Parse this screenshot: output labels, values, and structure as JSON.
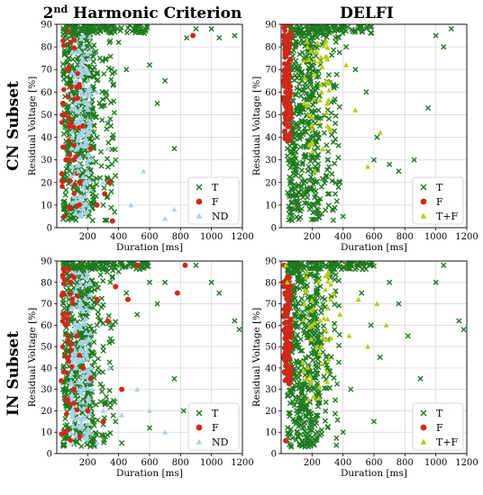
{
  "figure": {
    "col_titles": [
      "2nd Harmonic Criterion",
      "DELFI"
    ],
    "row_titles": [
      "CN Subset",
      "IN Subset"
    ]
  },
  "colors": {
    "T": "#1f7a1f",
    "F": "#cc2a1a",
    "ND": "#a9d2e6",
    "TF": "#b8cc10"
  },
  "chart_data": [
    {
      "type": "scatter",
      "id": "cn-harmonic",
      "panel_title": "2nd Harmonic Criterion",
      "row": "CN Subset",
      "xlabel": "Duration [ms]",
      "ylabel": "Residual Voltage [%]",
      "xlim": [
        0,
        1200
      ],
      "ylim": [
        0,
        90
      ],
      "xticks": [
        200,
        400,
        600,
        800,
        1000,
        1200
      ],
      "yticks": [
        0,
        10,
        20,
        30,
        40,
        50,
        60,
        70,
        80,
        90
      ],
      "grid": true,
      "legend_position": "bottom-right",
      "series": [
        {
          "name": "T",
          "marker": "x",
          "points": [
            [
              60,
              88
            ],
            [
              120,
              85
            ],
            [
              200,
              80
            ],
            [
              280,
              75
            ],
            [
              320,
              60
            ],
            [
              350,
              45
            ],
            [
              380,
              30
            ],
            [
              400,
              82
            ],
            [
              450,
              70
            ],
            [
              520,
              88
            ],
            [
              600,
              72
            ],
            [
              650,
              55
            ],
            [
              700,
              65
            ],
            [
              760,
              35
            ],
            [
              840,
              84
            ],
            [
              900,
              88
            ],
            [
              1000,
              88
            ],
            [
              1050,
              84
            ],
            [
              1150,
              85
            ],
            [
              230,
              15
            ],
            [
              300,
              10
            ],
            [
              260,
              40
            ],
            [
              180,
              65
            ]
          ]
        },
        {
          "name": "F",
          "marker": "o",
          "points": [
            [
              40,
              55
            ],
            [
              55,
              50
            ],
            [
              60,
              30
            ],
            [
              70,
              70
            ],
            [
              80,
              45
            ],
            [
              90,
              82
            ],
            [
              110,
              30
            ],
            [
              130,
              62
            ],
            [
              150,
              20
            ],
            [
              170,
              45
            ],
            [
              220,
              35
            ],
            [
              260,
              10
            ],
            [
              310,
              15
            ],
            [
              340,
              20
            ],
            [
              360,
              3
            ],
            [
              880,
              85
            ]
          ]
        },
        {
          "name": "ND",
          "marker": "^",
          "points": [
            [
              100,
              40
            ],
            [
              120,
              55
            ],
            [
              140,
              25
            ],
            [
              160,
              70
            ],
            [
              180,
              10
            ],
            [
              200,
              48
            ],
            [
              230,
              30
            ],
            [
              260,
              60
            ],
            [
              300,
              20
            ],
            [
              330,
              35
            ],
            [
              480,
              10
            ],
            [
              560,
              25
            ],
            [
              700,
              4
            ],
            [
              760,
              8
            ]
          ]
        }
      ]
    },
    {
      "type": "scatter",
      "id": "cn-delfi",
      "panel_title": "DELFI",
      "row": "CN Subset",
      "xlabel": "Duration [ms]",
      "ylabel": "Residual Voltage [%]",
      "xlim": [
        0,
        1200
      ],
      "ylim": [
        0,
        90
      ],
      "xticks": [
        200,
        400,
        600,
        800,
        1000,
        1200
      ],
      "yticks": [
        0,
        10,
        20,
        30,
        40,
        50,
        60,
        70,
        80,
        90
      ],
      "grid": true,
      "legend_position": "bottom-right",
      "series": [
        {
          "name": "T",
          "marker": "x",
          "points": [
            [
              60,
              88
            ],
            [
              150,
              75
            ],
            [
              200,
              60
            ],
            [
              250,
              45
            ],
            [
              300,
              30
            ],
            [
              350,
              15
            ],
            [
              420,
              80
            ],
            [
              480,
              70
            ],
            [
              550,
              60
            ],
            [
              600,
              30
            ],
            [
              620,
              40
            ],
            [
              700,
              28
            ],
            [
              760,
              25
            ],
            [
              860,
              30
            ],
            [
              950,
              53
            ],
            [
              1000,
              85
            ],
            [
              1050,
              80
            ],
            [
              1100,
              88
            ],
            [
              400,
              5
            ],
            [
              380,
              20
            ]
          ]
        },
        {
          "name": "F",
          "marker": "o",
          "points": [
            [
              20,
              85
            ],
            [
              25,
              70
            ],
            [
              30,
              60
            ],
            [
              35,
              50
            ],
            [
              40,
              40
            ],
            [
              45,
              78
            ],
            [
              50,
              66
            ],
            [
              55,
              55
            ],
            [
              60,
              45
            ]
          ]
        },
        {
          "name": "T+F",
          "marker": "^",
          "points": [
            [
              150,
              55
            ],
            [
              180,
              50
            ],
            [
              200,
              38
            ],
            [
              220,
              25
            ],
            [
              260,
              60
            ],
            [
              300,
              45
            ],
            [
              420,
              72
            ],
            [
              480,
              52
            ],
            [
              560,
              27
            ],
            [
              640,
              42
            ]
          ]
        }
      ]
    },
    {
      "type": "scatter",
      "id": "in-harmonic",
      "panel_title": "",
      "row": "IN Subset",
      "xlabel": "Duration [ms]",
      "ylabel": "Residual Voltage [%]",
      "xlim": [
        0,
        1200
      ],
      "ylim": [
        0,
        90
      ],
      "xticks": [
        200,
        400,
        600,
        800,
        1000,
        1200
      ],
      "yticks": [
        0,
        10,
        20,
        30,
        40,
        50,
        60,
        70,
        80,
        90
      ],
      "grid": true,
      "legend_position": "bottom-right",
      "series": [
        {
          "name": "T",
          "marker": "x",
          "points": [
            [
              60,
              88
            ],
            [
              130,
              80
            ],
            [
              200,
              70
            ],
            [
              260,
              60
            ],
            [
              300,
              50
            ],
            [
              350,
              40
            ],
            [
              400,
              85
            ],
            [
              450,
              75
            ],
            [
              520,
              65
            ],
            [
              600,
              80
            ],
            [
              650,
              70
            ],
            [
              700,
              80
            ],
            [
              760,
              35
            ],
            [
              820,
              20
            ],
            [
              900,
              88
            ],
            [
              1000,
              80
            ],
            [
              1050,
              75
            ],
            [
              1150,
              62
            ],
            [
              1180,
              58
            ],
            [
              380,
              15
            ],
            [
              420,
              5
            ],
            [
              600,
              12
            ]
          ]
        },
        {
          "name": "F",
          "marker": "o",
          "points": [
            [
              30,
              34
            ],
            [
              40,
              75
            ],
            [
              50,
              10
            ],
            [
              60,
              60
            ],
            [
              70,
              25
            ],
            [
              80,
              45
            ],
            [
              90,
              80
            ],
            [
              110,
              30
            ],
            [
              130,
              55
            ],
            [
              150,
              8
            ],
            [
              170,
              40
            ],
            [
              200,
              20
            ],
            [
              220,
              35
            ],
            [
              260,
              72
            ],
            [
              300,
              15
            ],
            [
              330,
              62
            ],
            [
              380,
              78
            ],
            [
              420,
              30
            ],
            [
              460,
              72
            ],
            [
              520,
              88
            ],
            [
              780,
              75
            ],
            [
              830,
              88
            ]
          ]
        },
        {
          "name": "ND",
          "marker": "^",
          "points": [
            [
              100,
              45
            ],
            [
              120,
              60
            ],
            [
              140,
              25
            ],
            [
              160,
              70
            ],
            [
              180,
              10
            ],
            [
              200,
              50
            ],
            [
              230,
              30
            ],
            [
              260,
              5
            ],
            [
              300,
              20
            ],
            [
              340,
              40
            ],
            [
              420,
              18
            ],
            [
              520,
              30
            ],
            [
              600,
              20
            ],
            [
              700,
              10
            ]
          ]
        }
      ]
    },
    {
      "type": "scatter",
      "id": "in-delfi",
      "panel_title": "",
      "row": "IN Subset",
      "xlabel": "Duration [ms]",
      "ylabel": "Residual Voltage [%]",
      "xlim": [
        0,
        1200
      ],
      "ylim": [
        0,
        90
      ],
      "xticks": [
        200,
        400,
        600,
        800,
        1000,
        1200
      ],
      "yticks": [
        0,
        10,
        20,
        30,
        40,
        50,
        60,
        70,
        80,
        90
      ],
      "grid": true,
      "legend_position": "bottom-right",
      "series": [
        {
          "name": "T",
          "marker": "x",
          "points": [
            [
              70,
              88
            ],
            [
              150,
              78
            ],
            [
              200,
              65
            ],
            [
              260,
              50
            ],
            [
              300,
              40
            ],
            [
              350,
              25
            ],
            [
              400,
              10
            ],
            [
              450,
              88
            ],
            [
              520,
              75
            ],
            [
              580,
              60
            ],
            [
              640,
              45
            ],
            [
              700,
              80
            ],
            [
              760,
              70
            ],
            [
              820,
              55
            ],
            [
              900,
              35
            ],
            [
              1000,
              80
            ],
            [
              1050,
              88
            ],
            [
              1150,
              62
            ],
            [
              1180,
              58
            ],
            [
              600,
              15
            ],
            [
              450,
              30
            ]
          ]
        },
        {
          "name": "F",
          "marker": "o",
          "points": [
            [
              20,
              88
            ],
            [
              25,
              75
            ],
            [
              30,
              65
            ],
            [
              35,
              55
            ],
            [
              40,
              45
            ],
            [
              45,
              35
            ],
            [
              50,
              82
            ],
            [
              55,
              70
            ],
            [
              60,
              58
            ],
            [
              30,
              6
            ]
          ]
        },
        {
          "name": "T+F",
          "marker": "^",
          "points": [
            [
              30,
              88
            ],
            [
              40,
              80
            ],
            [
              150,
              70
            ],
            [
              200,
              60
            ],
            [
              260,
              50
            ],
            [
              320,
              72
            ],
            [
              380,
              65
            ],
            [
              440,
              55
            ],
            [
              500,
              72
            ],
            [
              560,
              50
            ],
            [
              620,
              70
            ],
            [
              680,
              60
            ]
          ]
        }
      ]
    }
  ]
}
